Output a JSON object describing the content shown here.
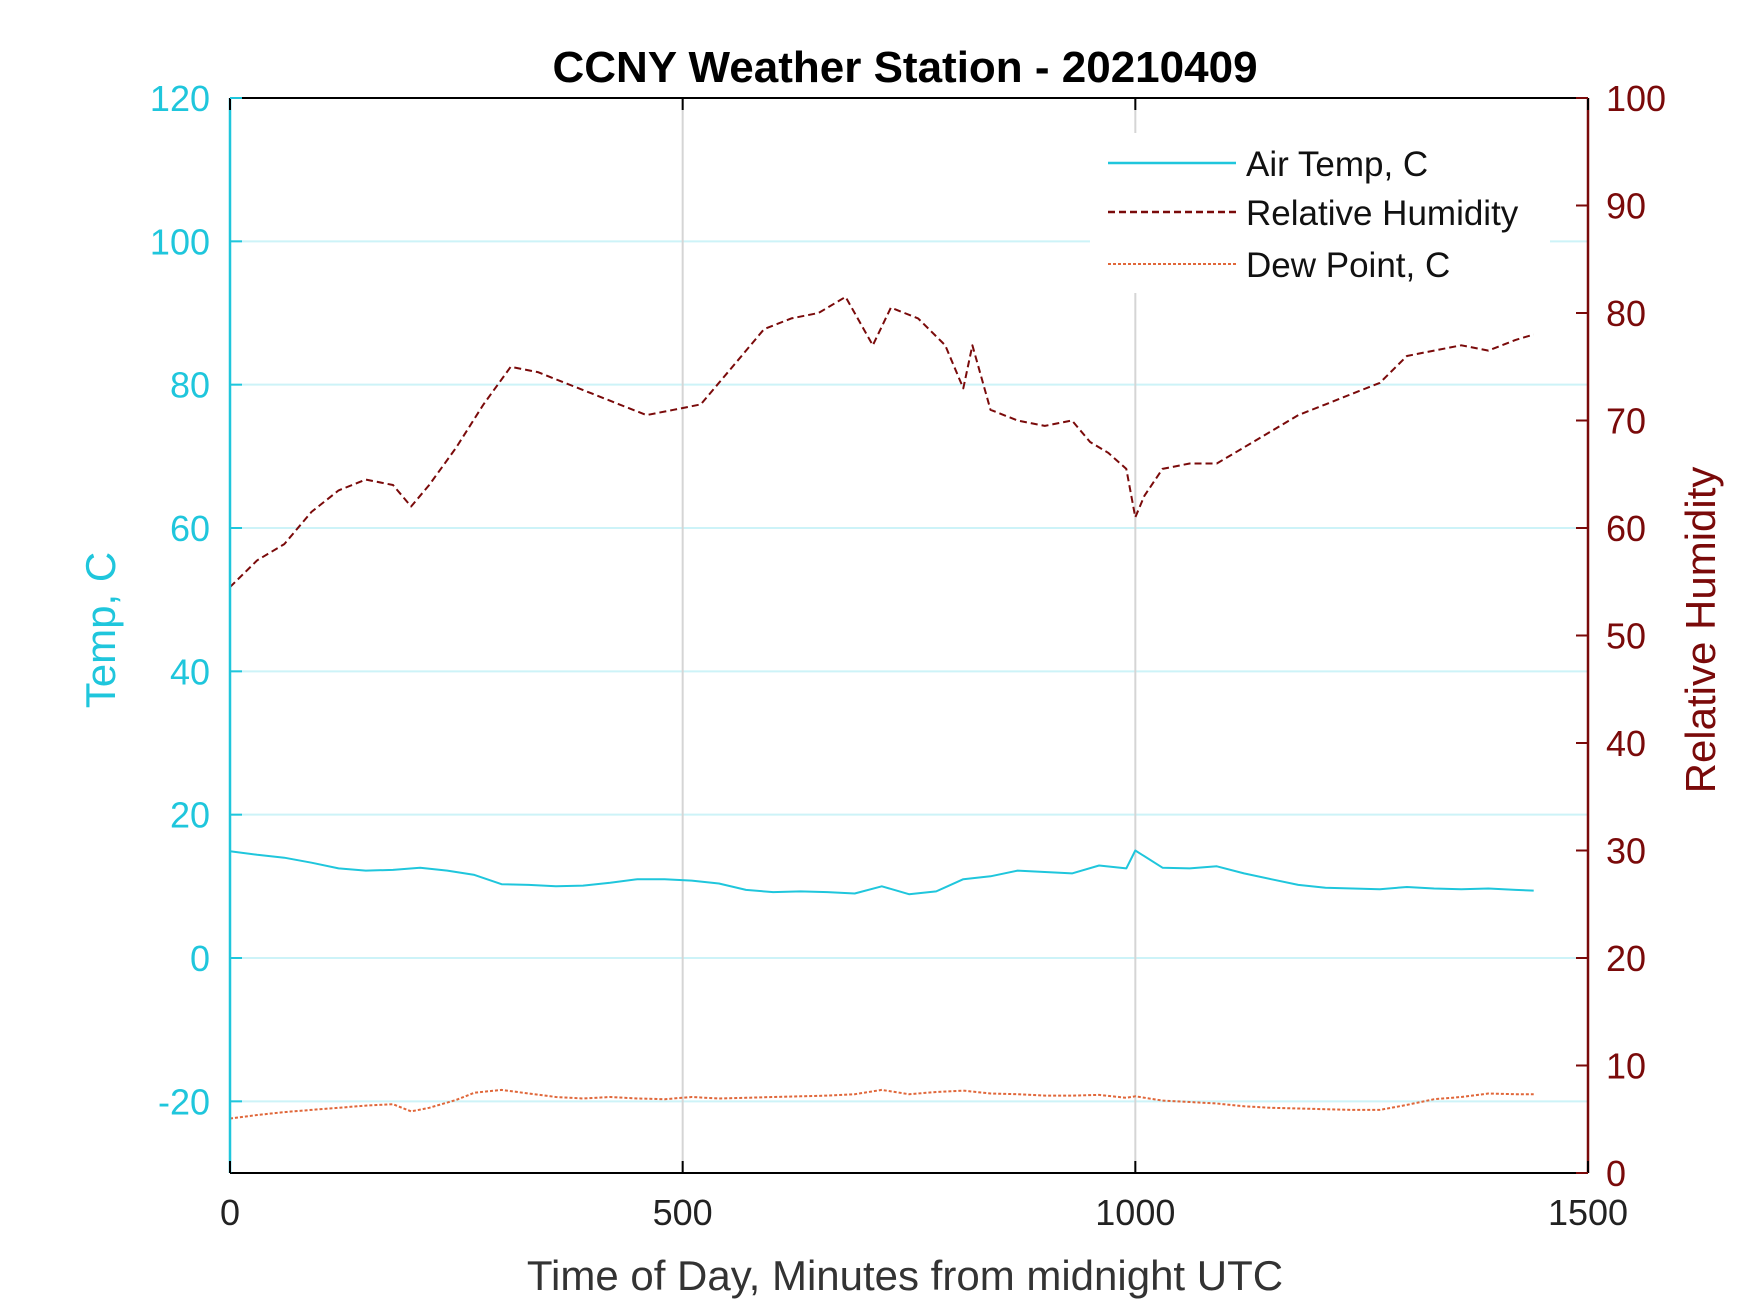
{
  "chart_data": {
    "type": "line",
    "title": "CCNY Weather Station - 20210409",
    "xlabel": "Time of Day, Minutes from midnight UTC",
    "ylabel_left": "Temp, C",
    "ylabel_right": "Relative Humidity",
    "xlim": [
      0,
      1500
    ],
    "ylim_left": [
      -30,
      120
    ],
    "ylim_right": [
      0,
      100
    ],
    "x_ticks": [
      "0",
      "500",
      "1000",
      "1500"
    ],
    "y_ticks_left": [
      "-20",
      "0",
      "20",
      "40",
      "60",
      "80",
      "100",
      "120"
    ],
    "y_ticks_right": [
      "0",
      "10",
      "20",
      "30",
      "40",
      "50",
      "60",
      "70",
      "80",
      "90",
      "100"
    ],
    "grid": "vertical lines on x-ticks, horizontal lines on left-axis ticks",
    "legend_position": "top-right",
    "colors": {
      "temp": "#1fc6dc",
      "humidity": "#7a0a0a",
      "dewpoint": "#e0673a",
      "grid_h": "#cdf3f8",
      "grid_v": "#d5d5d5",
      "axis_dark": "#000000"
    },
    "series": [
      {
        "name": "Air Temp, C",
        "axis": "left",
        "style": "solid",
        "x": [
          0,
          30,
          60,
          90,
          120,
          150,
          180,
          210,
          240,
          270,
          300,
          330,
          360,
          390,
          420,
          450,
          480,
          510,
          540,
          570,
          600,
          630,
          660,
          690,
          720,
          750,
          780,
          810,
          840,
          870,
          900,
          930,
          960,
          990,
          1000,
          1030,
          1060,
          1090,
          1120,
          1150,
          1180,
          1210,
          1240,
          1270,
          1300,
          1330,
          1360,
          1390,
          1420,
          1440
        ],
        "values": [
          14.9,
          14.4,
          14.0,
          13.3,
          12.5,
          12.2,
          12.3,
          12.6,
          12.2,
          11.6,
          10.3,
          10.2,
          10.0,
          10.1,
          10.5,
          11.0,
          11.0,
          10.8,
          10.4,
          9.5,
          9.2,
          9.3,
          9.2,
          9.0,
          10.0,
          8.9,
          9.3,
          11.0,
          11.4,
          12.2,
          12.0,
          11.8,
          12.9,
          12.5,
          15.0,
          12.6,
          12.5,
          12.8,
          11.8,
          11.0,
          10.2,
          9.8,
          9.7,
          9.6,
          9.9,
          9.7,
          9.6,
          9.7,
          9.5,
          9.4
        ]
      },
      {
        "name": "Relative Humidity",
        "axis": "right",
        "style": "dashed",
        "x": [
          0,
          30,
          60,
          90,
          120,
          150,
          180,
          200,
          220,
          250,
          280,
          310,
          340,
          370,
          400,
          430,
          460,
          490,
          520,
          540,
          560,
          590,
          620,
          650,
          680,
          700,
          710,
          730,
          760,
          790,
          810,
          820,
          840,
          870,
          900,
          930,
          950,
          970,
          990,
          1000,
          1010,
          1030,
          1060,
          1090,
          1120,
          1150,
          1180,
          1210,
          1240,
          1270,
          1300,
          1330,
          1360,
          1390,
          1420,
          1440
        ],
        "values": [
          54.5,
          57,
          58.5,
          61.5,
          63.5,
          64.5,
          64,
          62,
          64,
          67.5,
          71.5,
          75,
          74.5,
          73.5,
          72.5,
          71.5,
          70.5,
          71,
          71.5,
          73.5,
          75.5,
          78.5,
          79.5,
          80,
          81.5,
          78.5,
          77,
          80.5,
          79.5,
          77,
          73,
          77,
          71,
          70,
          69.5,
          70,
          68,
          67,
          65.5,
          61,
          63,
          65.5,
          66,
          66,
          67.5,
          69,
          70.5,
          71.5,
          72.5,
          73.5,
          76,
          76.5,
          77,
          76.5,
          77.5,
          78
        ]
      },
      {
        "name": "Dew Point, C",
        "axis": "left",
        "style": "dotted",
        "x": [
          0,
          30,
          60,
          90,
          120,
          150,
          180,
          200,
          220,
          250,
          270,
          300,
          330,
          360,
          390,
          420,
          450,
          480,
          510,
          540,
          570,
          600,
          630,
          660,
          690,
          720,
          750,
          780,
          810,
          840,
          870,
          900,
          930,
          960,
          990,
          1000,
          1030,
          1060,
          1090,
          1120,
          1150,
          1180,
          1210,
          1240,
          1270,
          1300,
          1330,
          1360,
          1390,
          1420,
          1440
        ],
        "values": [
          -22.4,
          -21.9,
          -21.5,
          -21.2,
          -20.9,
          -20.6,
          -20.4,
          -21.4,
          -20.9,
          -19.8,
          -18.8,
          -18.4,
          -18.9,
          -19.4,
          -19.6,
          -19.4,
          -19.6,
          -19.7,
          -19.4,
          -19.6,
          -19.5,
          -19.4,
          -19.3,
          -19.2,
          -19.0,
          -18.4,
          -19.0,
          -18.7,
          -18.5,
          -18.9,
          -19.0,
          -19.2,
          -19.2,
          -19.1,
          -19.5,
          -19.3,
          -19.9,
          -20.1,
          -20.3,
          -20.7,
          -20.9,
          -21.0,
          -21.1,
          -21.2,
          -21.2,
          -20.5,
          -19.7,
          -19.4,
          -18.9,
          -19.0,
          -19.0
        ]
      }
    ]
  }
}
